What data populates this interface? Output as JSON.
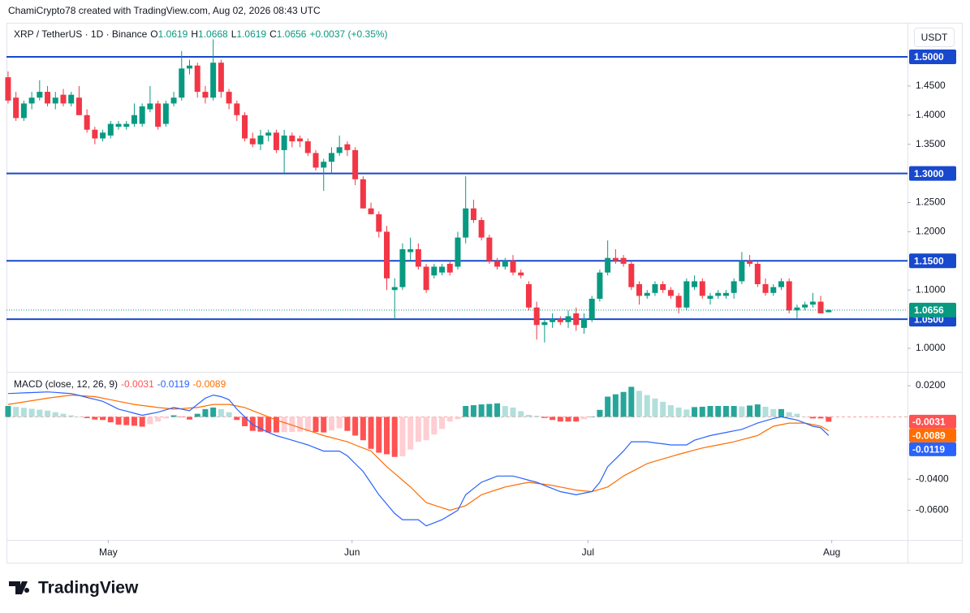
{
  "header": {
    "text": "ChamiCrypto78 created with TradingView.com, Aug 02, 2026 08:43 UTC"
  },
  "brand": "TradingView",
  "currency_button": "USDT",
  "chart_data": {
    "type": "candlestick",
    "legend": {
      "symbol": "XRP / TetherUS · 1D · Binance",
      "ohlc_letters": [
        "O",
        "H",
        "L",
        "C"
      ],
      "change": "+0.0037 (+0.35%)"
    },
    "up_color": "#089981",
    "down_color": "#f23645",
    "ohlc": [
      [
        1.465,
        1.475,
        1.42,
        1.425
      ],
      [
        1.43,
        1.44,
        1.39,
        1.395
      ],
      [
        1.395,
        1.425,
        1.39,
        1.42
      ],
      [
        1.42,
        1.44,
        1.41,
        1.43
      ],
      [
        1.43,
        1.46,
        1.425,
        1.44
      ],
      [
        1.44,
        1.45,
        1.415,
        1.42
      ],
      [
        1.42,
        1.44,
        1.41,
        1.43
      ],
      [
        1.435,
        1.445,
        1.415,
        1.42
      ],
      [
        1.42,
        1.44,
        1.415,
        1.435
      ],
      [
        1.43,
        1.45,
        1.4,
        1.4
      ],
      [
        1.4,
        1.41,
        1.37,
        1.375
      ],
      [
        1.375,
        1.38,
        1.35,
        1.36
      ],
      [
        1.36,
        1.375,
        1.355,
        1.37
      ],
      [
        1.365,
        1.39,
        1.36,
        1.385
      ],
      [
        1.38,
        1.39,
        1.375,
        1.385
      ],
      [
        1.38,
        1.39,
        1.375,
        1.385
      ],
      [
        1.385,
        1.42,
        1.38,
        1.4
      ],
      [
        1.385,
        1.42,
        1.38,
        1.415
      ],
      [
        1.41,
        1.45,
        1.405,
        1.42
      ],
      [
        1.42,
        1.425,
        1.375,
        1.38
      ],
      [
        1.385,
        1.425,
        1.38,
        1.42
      ],
      [
        1.42,
        1.44,
        1.415,
        1.43
      ],
      [
        1.43,
        1.51,
        1.425,
        1.48
      ],
      [
        1.48,
        1.495,
        1.47,
        1.485
      ],
      [
        1.485,
        1.49,
        1.43,
        1.44
      ],
      [
        1.44,
        1.45,
        1.42,
        1.43
      ],
      [
        1.43,
        1.53,
        1.425,
        1.49
      ],
      [
        1.49,
        1.495,
        1.43,
        1.44
      ],
      [
        1.44,
        1.445,
        1.41,
        1.42
      ],
      [
        1.42,
        1.425,
        1.39,
        1.4
      ],
      [
        1.4,
        1.405,
        1.355,
        1.36
      ],
      [
        1.36,
        1.37,
        1.345,
        1.35
      ],
      [
        1.35,
        1.375,
        1.34,
        1.365
      ],
      [
        1.365,
        1.375,
        1.355,
        1.37
      ],
      [
        1.37,
        1.375,
        1.335,
        1.34
      ],
      [
        1.34,
        1.375,
        1.3,
        1.365
      ],
      [
        1.365,
        1.37,
        1.345,
        1.355
      ],
      [
        1.36,
        1.365,
        1.345,
        1.355
      ],
      [
        1.355,
        1.36,
        1.33,
        1.335
      ],
      [
        1.335,
        1.34,
        1.305,
        1.31
      ],
      [
        1.31,
        1.325,
        1.27,
        1.32
      ],
      [
        1.32,
        1.345,
        1.3,
        1.335
      ],
      [
        1.335,
        1.365,
        1.33,
        1.345
      ],
      [
        1.35,
        1.355,
        1.33,
        1.34
      ],
      [
        1.34,
        1.345,
        1.28,
        1.29
      ],
      [
        1.29,
        1.295,
        1.24,
        1.24
      ],
      [
        1.24,
        1.25,
        1.23,
        1.23
      ],
      [
        1.23,
        1.235,
        1.19,
        1.2
      ],
      [
        1.2,
        1.21,
        1.1,
        1.12
      ],
      [
        1.1,
        1.12,
        1.05,
        1.105
      ],
      [
        1.105,
        1.18,
        1.1,
        1.17
      ],
      [
        1.165,
        1.19,
        1.15,
        1.17
      ],
      [
        1.17,
        1.18,
        1.135,
        1.14
      ],
      [
        1.14,
        1.145,
        1.095,
        1.1
      ],
      [
        1.125,
        1.145,
        1.12,
        1.14
      ],
      [
        1.13,
        1.145,
        1.125,
        1.14
      ],
      [
        1.145,
        1.15,
        1.125,
        1.13
      ],
      [
        1.14,
        1.2,
        1.135,
        1.19
      ],
      [
        1.19,
        1.295,
        1.18,
        1.24
      ],
      [
        1.24,
        1.255,
        1.215,
        1.22
      ],
      [
        1.22,
        1.225,
        1.185,
        1.19
      ],
      [
        1.19,
        1.195,
        1.145,
        1.15
      ],
      [
        1.15,
        1.155,
        1.135,
        1.14
      ],
      [
        1.14,
        1.155,
        1.135,
        1.15
      ],
      [
        1.15,
        1.16,
        1.125,
        1.13
      ],
      [
        1.13,
        1.135,
        1.12,
        1.125
      ],
      [
        1.11,
        1.115,
        1.065,
        1.07
      ],
      [
        1.07,
        1.08,
        1.015,
        1.04
      ],
      [
        1.04,
        1.05,
        1.01,
        1.045
      ],
      [
        1.045,
        1.06,
        1.035,
        1.05
      ],
      [
        1.05,
        1.055,
        1.04,
        1.045
      ],
      [
        1.045,
        1.065,
        1.035,
        1.055
      ],
      [
        1.06,
        1.07,
        1.03,
        1.04
      ],
      [
        1.035,
        1.06,
        1.025,
        1.05
      ],
      [
        1.05,
        1.09,
        1.045,
        1.085
      ],
      [
        1.085,
        1.135,
        1.08,
        1.13
      ],
      [
        1.13,
        1.185,
        1.125,
        1.155
      ],
      [
        1.155,
        1.17,
        1.145,
        1.15
      ],
      [
        1.155,
        1.16,
        1.14,
        1.145
      ],
      [
        1.145,
        1.15,
        1.1,
        1.105
      ],
      [
        1.11,
        1.115,
        1.075,
        1.09
      ],
      [
        1.09,
        1.1,
        1.085,
        1.095
      ],
      [
        1.095,
        1.115,
        1.09,
        1.11
      ],
      [
        1.11,
        1.115,
        1.095,
        1.1
      ],
      [
        1.1,
        1.105,
        1.085,
        1.09
      ],
      [
        1.09,
        1.095,
        1.06,
        1.07
      ],
      [
        1.07,
        1.12,
        1.065,
        1.115
      ],
      [
        1.105,
        1.125,
        1.1,
        1.115
      ],
      [
        1.115,
        1.12,
        1.085,
        1.09
      ],
      [
        1.085,
        1.095,
        1.075,
        1.09
      ],
      [
        1.09,
        1.1,
        1.085,
        1.095
      ],
      [
        1.09,
        1.1,
        1.085,
        1.095
      ],
      [
        1.095,
        1.12,
        1.085,
        1.115
      ],
      [
        1.115,
        1.165,
        1.11,
        1.15
      ],
      [
        1.15,
        1.16,
        1.14,
        1.145
      ],
      [
        1.145,
        1.15,
        1.105,
        1.11
      ],
      [
        1.11,
        1.12,
        1.09,
        1.095
      ],
      [
        1.095,
        1.11,
        1.09,
        1.105
      ],
      [
        1.105,
        1.12,
        1.1,
        1.115
      ],
      [
        1.115,
        1.12,
        1.06,
        1.065
      ],
      [
        1.065,
        1.075,
        1.05,
        1.07
      ],
      [
        1.07,
        1.08,
        1.065,
        1.075
      ],
      [
        1.075,
        1.095,
        1.07,
        1.08
      ],
      [
        1.08,
        1.09,
        1.06,
        1.06
      ],
      [
        1.0619,
        1.0668,
        1.0619,
        1.0656
      ]
    ],
    "xlim": [
      -0.2,
      114
    ],
    "xticks": [
      {
        "value": 12.7,
        "label": "May"
      },
      {
        "value": 43.6,
        "label": "Jun"
      },
      {
        "value": 73.5,
        "label": "Jul"
      },
      {
        "value": 104.4,
        "label": "Aug"
      }
    ],
    "ylim": [
      0.9596,
      1.5585
    ],
    "yticks": [
      {
        "value": 1.45,
        "label": "1.4500"
      },
      {
        "value": 1.4,
        "label": "1.4000"
      },
      {
        "value": 1.35,
        "label": "1.3500"
      },
      {
        "value": 1.25,
        "label": "1.2500"
      },
      {
        "value": 1.2,
        "label": "1.2000"
      },
      {
        "value": 1.1,
        "label": "1.1000"
      },
      {
        "value": 1.0,
        "label": "1.0000"
      }
    ],
    "levels": {
      "color": "#1848cc",
      "values": [
        {
          "value": 1.5,
          "label": "1.5000"
        },
        {
          "value": 1.3,
          "label": "1.3000"
        },
        {
          "value": 1.15,
          "label": "1.1500"
        },
        {
          "value": 1.05,
          "label": "1.0500"
        }
      ]
    },
    "macd": {
      "label": "MACD (close, 12, 26, 9)",
      "ylim": [
        -0.079,
        0.0289
      ],
      "yticks": [
        {
          "value": 0.02,
          "label": "0.0200"
        },
        {
          "value": -0.04,
          "label": "-0.0400"
        },
        {
          "value": -0.06,
          "label": "-0.0600"
        }
      ],
      "histogram": {
        "colors": {
          "up_rising": "#26a69a",
          "up_falling": "#b2dfdb",
          "down_falling": "#ff5252",
          "down_rising": "#ffcdd2"
        },
        "values": [
          0.007,
          0.0064,
          0.0058,
          0.0052,
          0.0046,
          0.004,
          0.003,
          0.002,
          0.001,
          0.0001,
          -0.0008,
          -0.0017,
          -0.002,
          -0.0035,
          -0.005,
          -0.0053,
          -0.0057,
          -0.0063,
          -0.0047,
          -0.003,
          -0.001,
          0.001,
          -0.0003,
          -0.0017,
          0.002,
          0.005,
          0.006,
          0.005,
          0.003,
          -0.002,
          -0.006,
          -0.009,
          -0.0095,
          -0.01,
          -0.01,
          -0.0098,
          -0.0097,
          -0.0095,
          -0.0093,
          -0.0097,
          -0.01,
          -0.0087,
          -0.0073,
          -0.009,
          -0.012,
          -0.015,
          -0.0205,
          -0.023,
          -0.024,
          -0.0257,
          -0.0253,
          -0.021,
          -0.016,
          -0.015,
          -0.0113,
          -0.0077,
          -0.003,
          -0.0015,
          0.007,
          0.0075,
          0.008,
          0.0083,
          0.0087,
          0.007,
          0.006,
          0.0037,
          0.0013,
          0.0007,
          -0.0007,
          -0.002,
          -0.003,
          -0.003,
          -0.003,
          -0.0015,
          0,
          0.0045,
          0.013,
          0.0145,
          0.016,
          0.0193,
          0.0167,
          0.014,
          0.0118,
          0.0097,
          0.0075,
          0.006,
          0.0047,
          0.0063,
          0.0065,
          0.007,
          0.007,
          0.007,
          0.007,
          0.0067,
          0.0073,
          0.008,
          0.0065,
          0.005,
          0.005,
          0.003,
          0.002,
          0,
          -0.001,
          -0.001,
          -0.0031
        ]
      },
      "macd_line": {
        "color": "#2962ff",
        "values": [
          0.015,
          0.0152,
          0.0154,
          0.0156,
          0.0158,
          0.016,
          0.0157,
          0.0153,
          0.015,
          0.0138,
          0.0125,
          0.0113,
          0.01,
          0.0075,
          0.005,
          0.0037,
          0.0023,
          0.001,
          0.002,
          0.003,
          0.0045,
          0.006,
          0.005,
          0.004,
          0.008,
          0.012,
          0.014,
          0.013,
          0.011,
          0.005,
          0,
          -0.005,
          -0.0075,
          -0.01,
          -0.012,
          -0.0135,
          -0.015,
          -0.0165,
          -0.018,
          -0.02,
          -0.022,
          -0.022,
          -0.022,
          -0.025,
          -0.03,
          -0.035,
          -0.0425,
          -0.05,
          -0.056,
          -0.062,
          -0.066,
          -0.066,
          -0.066,
          -0.07,
          -0.068,
          -0.066,
          -0.063,
          -0.06,
          -0.05,
          -0.046,
          -0.042,
          -0.04,
          -0.038,
          -0.038,
          -0.038,
          -0.0393,
          -0.0407,
          -0.042,
          -0.044,
          -0.046,
          -0.048,
          -0.049,
          -0.05,
          -0.049,
          -0.048,
          -0.042,
          -0.032,
          -0.027,
          -0.022,
          -0.016,
          -0.016,
          -0.016,
          -0.0167,
          -0.0173,
          -0.018,
          -0.018,
          -0.018,
          -0.015,
          -0.0135,
          -0.012,
          -0.011,
          -0.01,
          -0.009,
          -0.008,
          -0.006,
          -0.004,
          -0.0025,
          -0.001,
          0,
          -0.001,
          -0.002,
          -0.004,
          -0.006,
          -0.007,
          -0.0119
        ]
      },
      "signal_line": {
        "color": "#ff6d00",
        "values": [
          0.008,
          0.0088,
          0.0096,
          0.0104,
          0.0112,
          0.012,
          0.0127,
          0.0133,
          0.014,
          0.0137,
          0.0133,
          0.013,
          0.012,
          0.011,
          0.01,
          0.009,
          0.008,
          0.0073,
          0.0067,
          0.006,
          0.0055,
          0.005,
          0.0053,
          0.0057,
          0.006,
          0.007,
          0.008,
          0.008,
          0.008,
          0.007,
          0.006,
          0.004,
          0.002,
          0,
          -0.002,
          -0.0037,
          -0.0053,
          -0.007,
          -0.0087,
          -0.0103,
          -0.012,
          -0.0133,
          -0.0147,
          -0.016,
          -0.018,
          -0.02,
          -0.022,
          -0.027,
          -0.032,
          -0.0363,
          -0.0407,
          -0.045,
          -0.05,
          -0.055,
          -0.0567,
          -0.0583,
          -0.06,
          -0.0585,
          -0.057,
          -0.0535,
          -0.05,
          -0.0483,
          -0.0467,
          -0.045,
          -0.044,
          -0.043,
          -0.042,
          -0.0427,
          -0.0433,
          -0.044,
          -0.045,
          -0.046,
          -0.047,
          -0.0475,
          -0.048,
          -0.0465,
          -0.045,
          -0.0415,
          -0.038,
          -0.0353,
          -0.0327,
          -0.03,
          -0.0285,
          -0.027,
          -0.0255,
          -0.024,
          -0.0227,
          -0.0213,
          -0.02,
          -0.019,
          -0.018,
          -0.017,
          -0.016,
          -0.0147,
          -0.0133,
          -0.012,
          -0.009,
          -0.006,
          -0.005,
          -0.004,
          -0.004,
          -0.004,
          -0.005,
          -0.006,
          -0.0089
        ]
      }
    }
  }
}
